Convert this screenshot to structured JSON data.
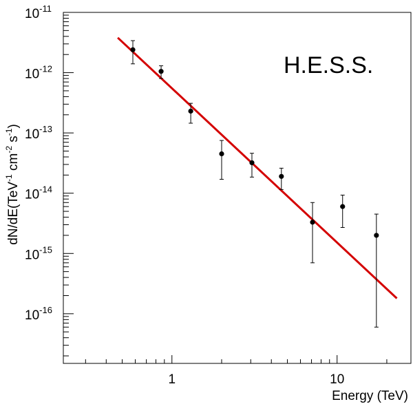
{
  "chart_data": {
    "type": "scatter",
    "xlabel": "Energy (TeV)",
    "ylabel_parts": [
      "dN/dE(TeV",
      "-1",
      " cm",
      "-2",
      " s",
      "-1",
      ")"
    ],
    "annotation": "H.E.S.S.",
    "x_scale": "log",
    "y_scale": "log",
    "xlim": [
      0.22,
      28
    ],
    "ylim": [
      1.5e-17,
      1e-11
    ],
    "x_major_ticks": [
      {
        "value": 1,
        "label": "1"
      },
      {
        "value": 10,
        "label": "10"
      }
    ],
    "y_major_ticks": [
      {
        "value": 1e-11,
        "base": "10",
        "exp": "-11"
      },
      {
        "value": 1e-12,
        "base": "10",
        "exp": "-12"
      },
      {
        "value": 1e-13,
        "base": "10",
        "exp": "-13"
      },
      {
        "value": 1e-14,
        "base": "10",
        "exp": "-14"
      },
      {
        "value": 1e-15,
        "base": "10",
        "exp": "-15"
      },
      {
        "value": 1e-16,
        "base": "10",
        "exp": "-16"
      }
    ],
    "grid": false,
    "points": [
      {
        "x": 0.58,
        "y": 2.4e-12,
        "y_low": 1.4e-12,
        "y_high": 3.4e-12
      },
      {
        "x": 0.86,
        "y": 1.05e-12,
        "y_low": 8e-13,
        "y_high": 1.3e-12
      },
      {
        "x": 1.3,
        "y": 2.3e-13,
        "y_low": 1.45e-13,
        "y_high": 3.1e-13
      },
      {
        "x": 2.0,
        "y": 4.5e-14,
        "y_low": 1.7e-14,
        "y_high": 7.5e-14
      },
      {
        "x": 3.05,
        "y": 3.2e-14,
        "y_low": 1.85e-14,
        "y_high": 4.6e-14
      },
      {
        "x": 4.6,
        "y": 1.9e-14,
        "y_low": 1.15e-14,
        "y_high": 2.6e-14
      },
      {
        "x": 7.1,
        "y": 3.3e-15,
        "y_low": 7e-16,
        "y_high": 7e-15
      },
      {
        "x": 10.8,
        "y": 6e-15,
        "y_low": 2.7e-15,
        "y_high": 9.3e-15
      },
      {
        "x": 17.3,
        "y": 2e-15,
        "y_low": 6e-17,
        "y_high": 4.5e-15
      }
    ],
    "fit_line": {
      "x": [
        0.47,
        23
      ],
      "y": [
        3.8e-12,
        1.8e-16
      ]
    },
    "colors": {
      "fit": "#d40000",
      "points": "#000000",
      "axes": "#000000"
    }
  }
}
